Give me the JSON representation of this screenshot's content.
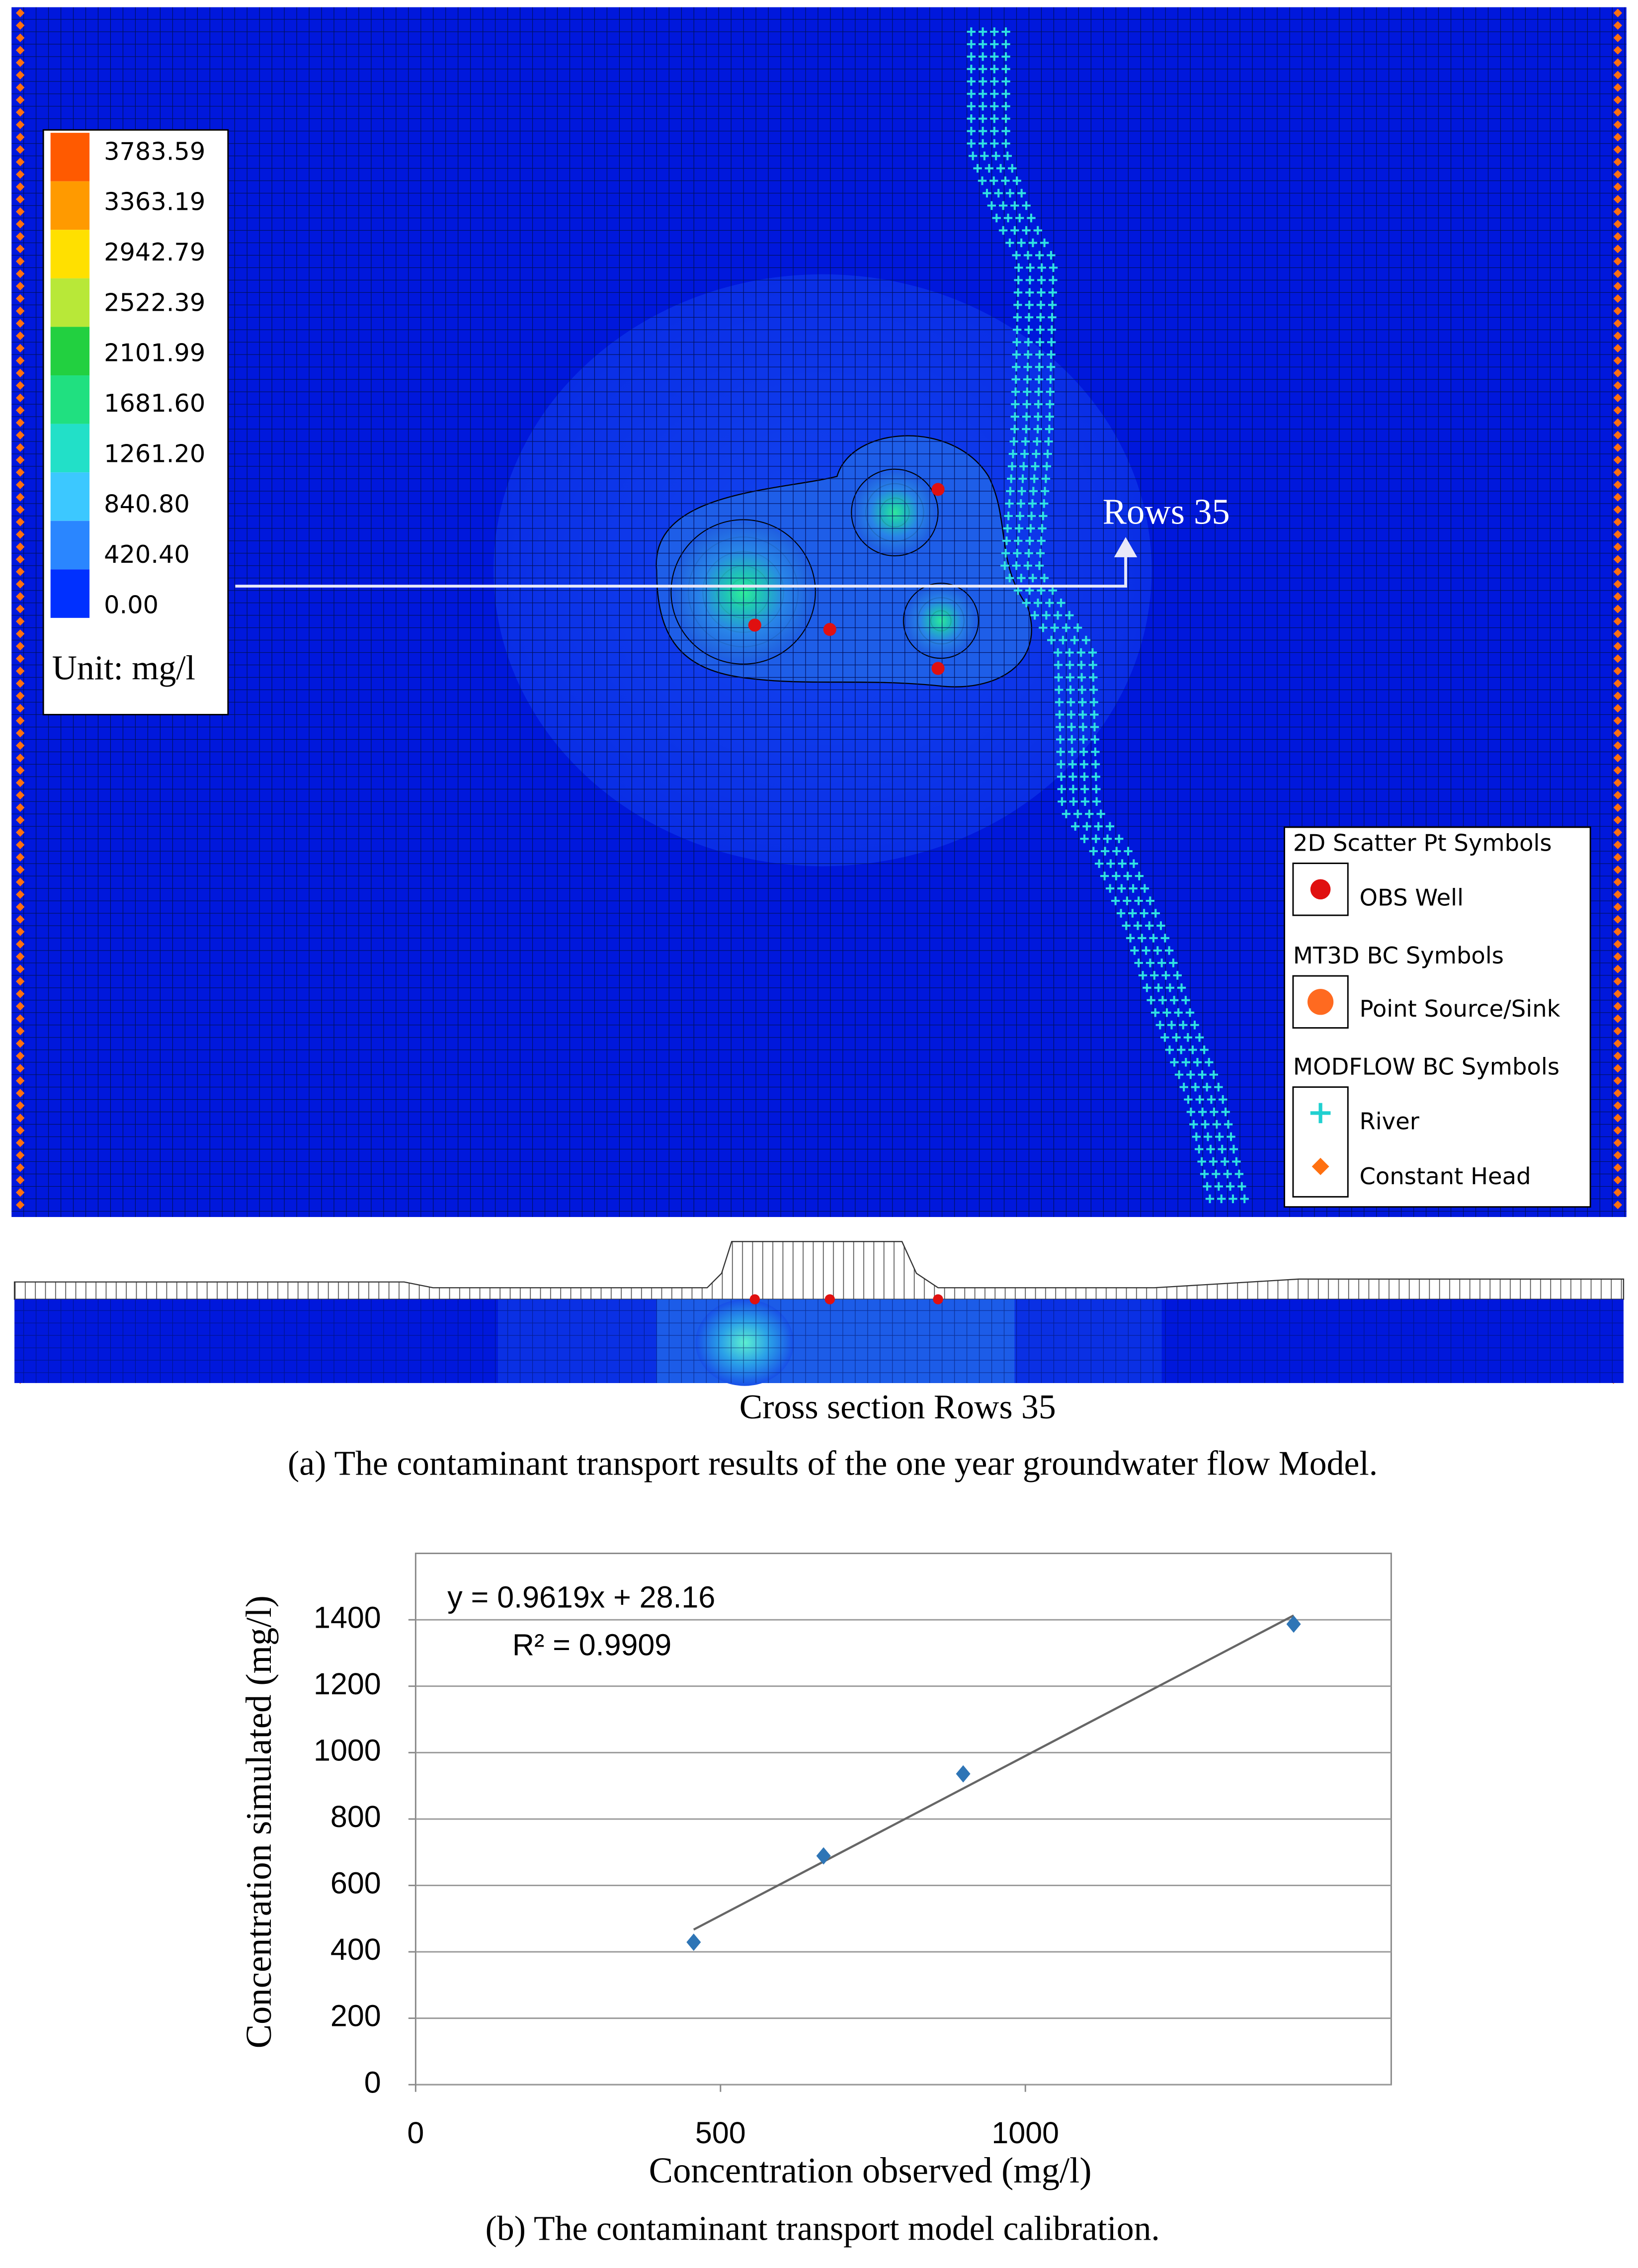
{
  "model_map": {
    "colorbar": {
      "labels": [
        "3783.59",
        "3363.19",
        "2942.79",
        "2522.39",
        "2101.99",
        "1681.60",
        "1261.20",
        "840.80",
        "420.40",
        "0.00"
      ],
      "colors": [
        "#ff5a00",
        "#ff9a00",
        "#ffe000",
        "#b8e838",
        "#22d040",
        "#20e080",
        "#22e0c8",
        "#3cc8ff",
        "#2a86ff",
        "#0030ff"
      ],
      "unit": "Unit: mg/l"
    },
    "annotation": "Rows 35",
    "legend": {
      "groups": [
        {
          "title": "2D Scatter Pt Symbols",
          "items": [
            "OBS Well"
          ]
        },
        {
          "title": "MT3D BC Symbols",
          "items": [
            "Point Source/Sink"
          ]
        },
        {
          "title": "MODFLOW BC Symbols",
          "items": [
            "River",
            "Constant Head"
          ]
        }
      ]
    }
  },
  "cross_section": {
    "label": "Cross section Rows 35"
  },
  "caption_a": "(a) The contaminant transport results of the one year groundwater flow Model.",
  "chart_data": {
    "type": "scatter",
    "x": [
      456,
      669,
      898,
      1440
    ],
    "values": [
      429,
      689,
      936,
      1387
    ],
    "color": "#2e75b6",
    "xlabel": "Concentration observed (mg/l)",
    "ylabel": "Concentration simulated (mg/l)",
    "annotations": [
      "y = 0.9619x + 28.16",
      "R² = 0.9909"
    ],
    "trendline": {
      "x": [
        456,
        1440
      ],
      "values": [
        467,
        1413
      ]
    },
    "xlim": [
      0,
      1600
    ],
    "ylim": [
      0,
      1600
    ],
    "xticks": [
      0,
      500,
      1000
    ],
    "yticks": [
      0,
      200,
      400,
      600,
      800,
      1000,
      1200,
      1400
    ],
    "grid": true
  },
  "caption_b": "(b) The contaminant transport model calibration."
}
